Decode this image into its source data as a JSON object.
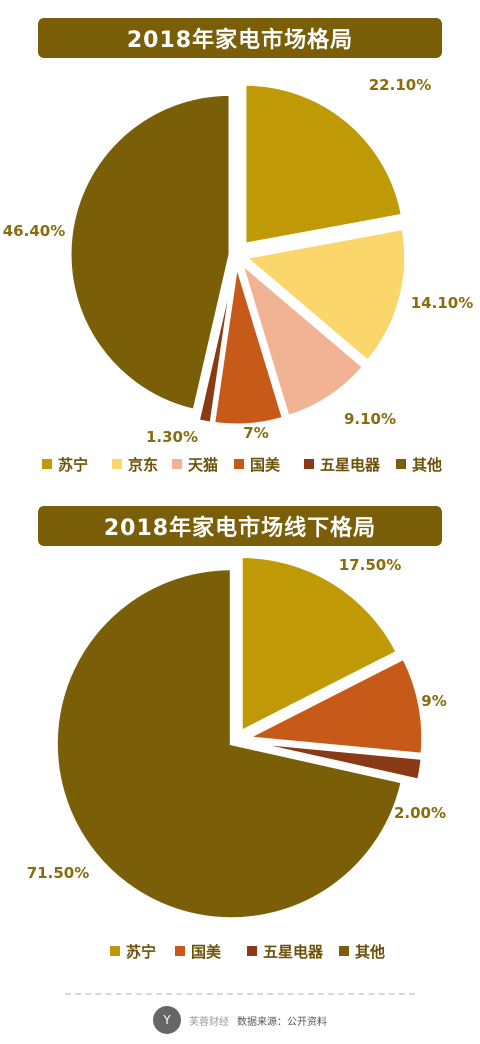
{
  "chart_data": [
    {
      "type": "pie",
      "title": "2018年家电市场格局",
      "categories": [
        "苏宁",
        "京东",
        "天猫",
        "国美",
        "五星电器",
        "其他"
      ],
      "values": [
        22.1,
        14.1,
        9.1,
        7,
        1.3,
        46.4
      ],
      "value_labels": [
        "22.10%",
        "14.10%",
        "9.10%",
        "7%",
        "1.30%",
        "46.40%"
      ],
      "colors": [
        "#c09a06",
        "#fad66b",
        "#f2b394",
        "#c85a19",
        "#8a3a14",
        "#7a5e08"
      ],
      "legend": "bottom",
      "exploded": true
    },
    {
      "type": "pie",
      "title": "2018年家电市场线下格局",
      "categories": [
        "苏宁",
        "国美",
        "五星电器",
        "其他"
      ],
      "values": [
        17.5,
        9,
        2,
        71.5
      ],
      "value_labels": [
        "17.50%",
        "9%",
        "2.00%",
        "71.50%"
      ],
      "colors": [
        "#c09a06",
        "#c85a19",
        "#8a3a14",
        "#7a5e08"
      ],
      "legend": "bottom",
      "exploded": true
    }
  ],
  "footer": {
    "logo_text": "Y",
    "brand": "芙蓉财经",
    "source": "数据来源：公开资料"
  }
}
